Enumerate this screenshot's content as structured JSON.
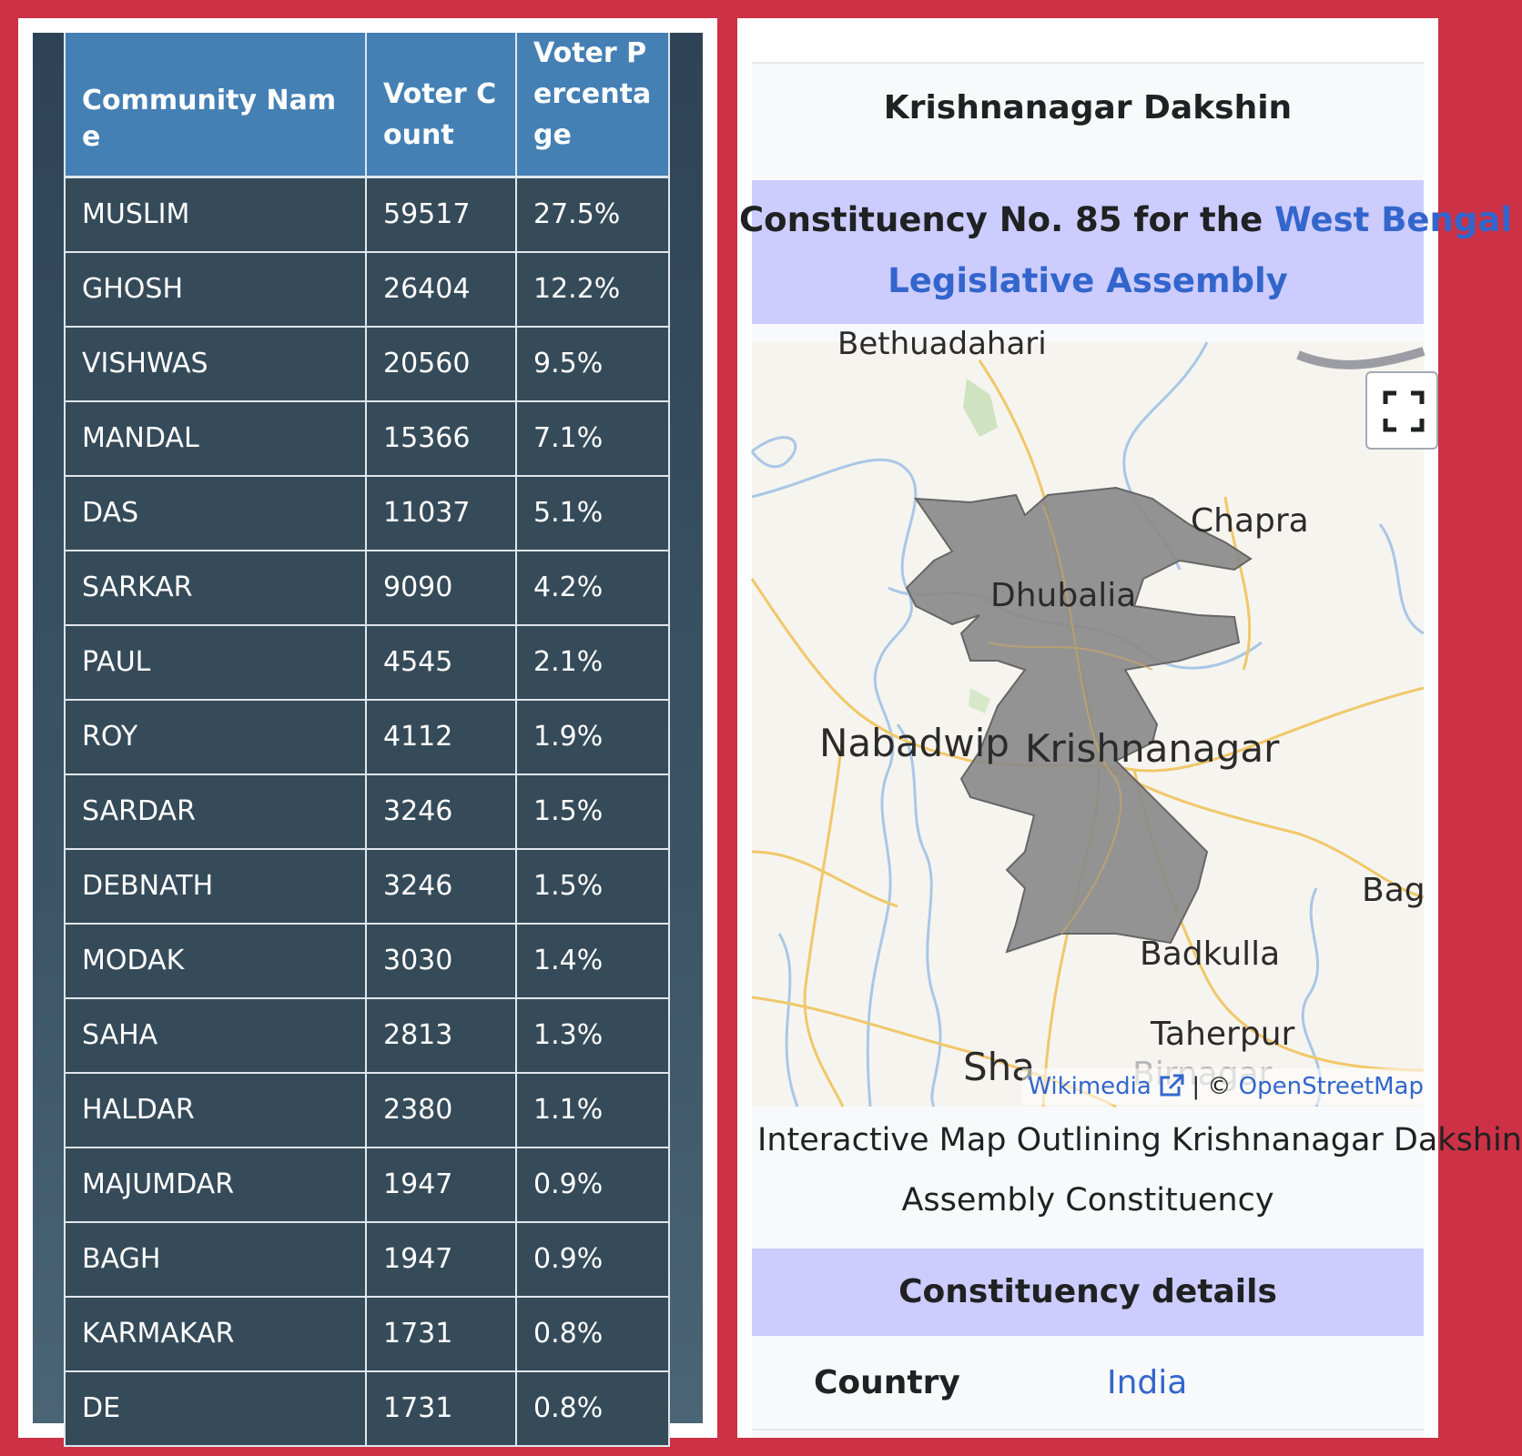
{
  "table": {
    "headers": [
      "Community Name",
      "Voter Count",
      "Voter Percentage"
    ],
    "rows": [
      [
        "MUSLIM",
        "59517",
        "27.5%"
      ],
      [
        "GHOSH",
        "26404",
        "12.2%"
      ],
      [
        "VISHWAS",
        "20560",
        "9.5%"
      ],
      [
        "MANDAL",
        "15366",
        "7.1%"
      ],
      [
        "DAS",
        "11037",
        "5.1%"
      ],
      [
        "SARKAR",
        "9090",
        "4.2%"
      ],
      [
        "PAUL",
        "4545",
        "2.1%"
      ],
      [
        "ROY",
        "4112",
        "1.9%"
      ],
      [
        "SARDAR",
        "3246",
        "1.5%"
      ],
      [
        "DEBNATH",
        "3246",
        "1.5%"
      ],
      [
        "MODAK",
        "3030",
        "1.4%"
      ],
      [
        "SAHA",
        "2813",
        "1.3%"
      ],
      [
        "HALDAR",
        "2380",
        "1.1%"
      ],
      [
        "MAJUMDAR",
        "1947",
        "0.9%"
      ],
      [
        "BAGH",
        "1947",
        "0.9%"
      ],
      [
        "KARMAKAR",
        "1731",
        "0.8%"
      ],
      [
        "DE",
        "1731",
        "0.8%"
      ]
    ]
  },
  "infobox": {
    "title": "Krishnanagar Dakshin",
    "subheader_prefix": "Constituency No. 85 for the ",
    "subheader_link_line1": "West Bengal",
    "subheader_link_line2": "Legislative Assembly",
    "map": {
      "labels": {
        "bethuadahari": "Bethuadahari",
        "chapra": "Chapra",
        "dhubalia": "Dhubalia",
        "nabadwip": "Nabadwip",
        "krishnanagar": "Krishnanagar",
        "bag": "Bag",
        "badkulla": "Badkulla",
        "taherpur": "Taherpur",
        "shantipur": "Sha",
        "birnagar": "Birnagar"
      },
      "attribution_wikimedia": "Wikimedia",
      "attribution_separator": "| ©",
      "attribution_osm": "OpenStreetMap",
      "fullscreen_icon": "fullscreen-icon",
      "external_link_icon": "external-link-icon"
    },
    "caption_line1": "Interactive Map Outlining Krishnanagar Dakshin",
    "caption_line2": "Assembly Constituency",
    "details_header": "Constituency details",
    "country_label": "Country",
    "country_value": "India"
  },
  "colors": {
    "frame": "#cc3145",
    "table_header": "#4580b4",
    "table_cell": "#364b59",
    "infobox_header": "#ccccff",
    "link": "#3366cc",
    "constituency_fill": "#888888"
  }
}
